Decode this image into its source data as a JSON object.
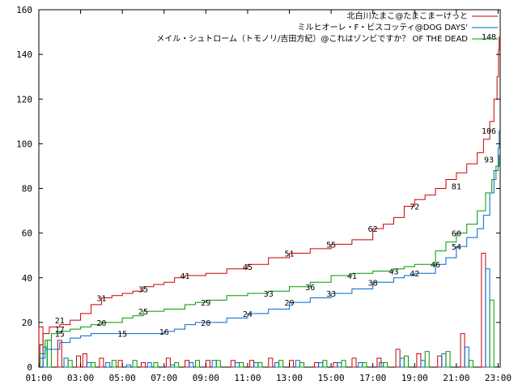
{
  "chart_data": {
    "type": "line",
    "xlabel": "",
    "ylabel": "",
    "xlim": [
      1,
      23.1
    ],
    "ylim": [
      0,
      160
    ],
    "x_ticks": [
      "01:00",
      "03:00",
      "05:00",
      "07:00",
      "09:00",
      "11:00",
      "13:00",
      "15:00",
      "17:00",
      "19:00",
      "21:00",
      "23:00"
    ],
    "y_ticks": [
      0,
      20,
      40,
      60,
      80,
      100,
      120,
      140,
      160
    ],
    "grid": false,
    "legend_position": "top-right",
    "series": [
      {
        "name": "北白川たまこ@たまこまーけっと",
        "color": "#cc0000",
        "points": [
          [
            1,
            0
          ],
          [
            1.05,
            10
          ],
          [
            1.2,
            15
          ],
          [
            1.5,
            18
          ],
          [
            2,
            19
          ],
          [
            2.5,
            21
          ],
          [
            3,
            24
          ],
          [
            3.5,
            28
          ],
          [
            4,
            31
          ],
          [
            4.5,
            32
          ],
          [
            5,
            33
          ],
          [
            5.5,
            34
          ],
          [
            6,
            36
          ],
          [
            6.5,
            37
          ],
          [
            7,
            38
          ],
          [
            7.5,
            40
          ],
          [
            8,
            41
          ],
          [
            9,
            42
          ],
          [
            10,
            44
          ],
          [
            11,
            46
          ],
          [
            12,
            49
          ],
          [
            13,
            51
          ],
          [
            14,
            53
          ],
          [
            15,
            55
          ],
          [
            16,
            57
          ],
          [
            17,
            62
          ],
          [
            17.5,
            64
          ],
          [
            18,
            67
          ],
          [
            18.5,
            72
          ],
          [
            19,
            75
          ],
          [
            19.5,
            77
          ],
          [
            20,
            80
          ],
          [
            20.5,
            84
          ],
          [
            21,
            87
          ],
          [
            21.5,
            91
          ],
          [
            22,
            96
          ],
          [
            22.3,
            102
          ],
          [
            22.6,
            110
          ],
          [
            22.8,
            120
          ],
          [
            22.95,
            130
          ],
          [
            23.02,
            142
          ],
          [
            23.05,
            148
          ]
        ],
        "labels": [
          [
            2,
            21
          ],
          [
            4,
            31
          ],
          [
            6,
            35
          ],
          [
            8,
            41
          ],
          [
            11,
            45
          ],
          [
            13,
            51
          ],
          [
            15,
            55
          ],
          [
            17,
            62
          ],
          [
            19,
            72
          ],
          [
            21,
            81
          ],
          [
            23,
            148
          ]
        ]
      },
      {
        "name": "ミルヒオーレ・F・ビスコッティ@DOG DAYS'",
        "color": "#0066cc",
        "points": [
          [
            1,
            0
          ],
          [
            1.05,
            4
          ],
          [
            1.3,
            8
          ],
          [
            2,
            11
          ],
          [
            2.5,
            13
          ],
          [
            3,
            14
          ],
          [
            3.5,
            15
          ],
          [
            4,
            15
          ],
          [
            5,
            15
          ],
          [
            6,
            15
          ],
          [
            7,
            16
          ],
          [
            7.5,
            17
          ],
          [
            8,
            19
          ],
          [
            8.5,
            20
          ],
          [
            9,
            20
          ],
          [
            10,
            22
          ],
          [
            11,
            24
          ],
          [
            12,
            26
          ],
          [
            13,
            29
          ],
          [
            14,
            31
          ],
          [
            15,
            33
          ],
          [
            16,
            35
          ],
          [
            17,
            38
          ],
          [
            18,
            40
          ],
          [
            18.5,
            41
          ],
          [
            19,
            42
          ],
          [
            20,
            46
          ],
          [
            20.5,
            49
          ],
          [
            21,
            54
          ],
          [
            21.5,
            58
          ],
          [
            22,
            62
          ],
          [
            22.3,
            68
          ],
          [
            22.6,
            78
          ],
          [
            22.8,
            88
          ],
          [
            23,
            98
          ],
          [
            23.05,
            106
          ]
        ],
        "labels": [
          [
            2,
            15
          ],
          [
            5,
            15
          ],
          [
            7,
            16
          ],
          [
            9,
            20
          ],
          [
            11,
            24
          ],
          [
            13,
            29
          ],
          [
            15,
            33
          ],
          [
            17,
            38
          ],
          [
            19,
            42
          ],
          [
            21,
            54
          ],
          [
            23,
            106
          ]
        ]
      },
      {
        "name": "メイル・シュトローム（トモノリ/吉田方紀）@これはゾンビですか？ OF THE DEAD",
        "color": "#009900",
        "points": [
          [
            1,
            0
          ],
          [
            1.05,
            6
          ],
          [
            1.3,
            12
          ],
          [
            1.6,
            15
          ],
          [
            2,
            16
          ],
          [
            2.5,
            17
          ],
          [
            3,
            18
          ],
          [
            3.5,
            19
          ],
          [
            4,
            20
          ],
          [
            5,
            22
          ],
          [
            5.5,
            23
          ],
          [
            6,
            25
          ],
          [
            7,
            26
          ],
          [
            8,
            28
          ],
          [
            8.5,
            29
          ],
          [
            9,
            30
          ],
          [
            10,
            32
          ],
          [
            11,
            33
          ],
          [
            12,
            34
          ],
          [
            13,
            36
          ],
          [
            14,
            38
          ],
          [
            15,
            41
          ],
          [
            16,
            42
          ],
          [
            17,
            43
          ],
          [
            18,
            44
          ],
          [
            18.5,
            45
          ],
          [
            19,
            46
          ],
          [
            20,
            52
          ],
          [
            20.5,
            56
          ],
          [
            21,
            60
          ],
          [
            21.5,
            64
          ],
          [
            22,
            70
          ],
          [
            22.4,
            78
          ],
          [
            22.7,
            84
          ],
          [
            22.9,
            90
          ],
          [
            23.05,
            95
          ]
        ],
        "labels": [
          [
            2,
            17
          ],
          [
            4,
            20
          ],
          [
            6,
            25
          ],
          [
            9,
            29
          ],
          [
            12,
            33
          ],
          [
            14,
            36
          ],
          [
            16,
            41
          ],
          [
            18,
            43
          ],
          [
            20,
            46
          ],
          [
            21,
            60
          ],
          [
            23,
            93
          ]
        ]
      }
    ],
    "bar_series": [
      {
        "color": "#cc0000",
        "bars": [
          [
            1.1,
            18
          ],
          [
            2,
            12
          ],
          [
            2.9,
            5
          ],
          [
            3.2,
            6
          ],
          [
            4,
            4
          ],
          [
            4.9,
            3
          ],
          [
            6,
            2
          ],
          [
            7.2,
            4
          ],
          [
            8.1,
            3
          ],
          [
            9.1,
            3
          ],
          [
            10.3,
            3
          ],
          [
            11.2,
            3
          ],
          [
            12.1,
            4
          ],
          [
            13.1,
            3
          ],
          [
            14.3,
            2
          ],
          [
            15.2,
            2
          ],
          [
            16.1,
            4
          ],
          [
            17.3,
            4
          ],
          [
            18.2,
            8
          ],
          [
            19.2,
            6
          ],
          [
            20.2,
            5
          ],
          [
            21.3,
            15
          ],
          [
            22.3,
            51
          ]
        ]
      },
      {
        "color": "#0066cc",
        "bars": [
          [
            1.3,
            9
          ],
          [
            2.3,
            4
          ],
          [
            3.4,
            2
          ],
          [
            4.3,
            2
          ],
          [
            5.3,
            1
          ],
          [
            6.3,
            2
          ],
          [
            7.4,
            1
          ],
          [
            8.3,
            2
          ],
          [
            9.4,
            3
          ],
          [
            10.5,
            2
          ],
          [
            11.4,
            2
          ],
          [
            12.4,
            2
          ],
          [
            13.4,
            3
          ],
          [
            14.5,
            2
          ],
          [
            15.4,
            2
          ],
          [
            16.4,
            2
          ],
          [
            17.4,
            2
          ],
          [
            18.4,
            4
          ],
          [
            19.4,
            3
          ],
          [
            20.4,
            6
          ],
          [
            21.5,
            9
          ],
          [
            22.5,
            44
          ]
        ]
      },
      {
        "color": "#009900",
        "bars": [
          [
            1.5,
            12
          ],
          [
            2.5,
            3
          ],
          [
            3.6,
            2
          ],
          [
            4.6,
            3
          ],
          [
            5.6,
            3
          ],
          [
            6.6,
            2
          ],
          [
            7.6,
            2
          ],
          [
            8.6,
            3
          ],
          [
            9.6,
            3
          ],
          [
            10.7,
            2
          ],
          [
            11.6,
            2
          ],
          [
            12.6,
            3
          ],
          [
            13.6,
            2
          ],
          [
            14.7,
            3
          ],
          [
            15.6,
            3
          ],
          [
            16.6,
            2
          ],
          [
            17.6,
            2
          ],
          [
            18.6,
            5
          ],
          [
            19.6,
            7
          ],
          [
            20.6,
            7
          ],
          [
            21.7,
            3
          ],
          [
            22.7,
            30
          ]
        ]
      }
    ]
  }
}
